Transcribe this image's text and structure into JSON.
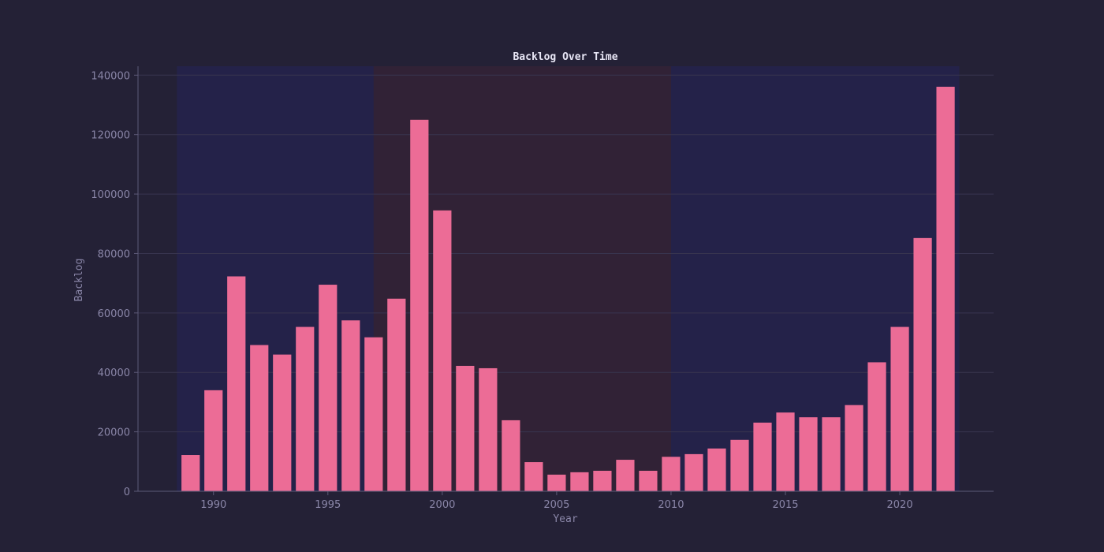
{
  "chart_data": {
    "type": "bar",
    "title": "Backlog Over Time",
    "xlabel": "Year",
    "ylabel": "Backlog",
    "x": [
      1989,
      1990,
      1991,
      1992,
      1993,
      1994,
      1995,
      1996,
      1997,
      1998,
      1999,
      2000,
      2001,
      2002,
      2003,
      2004,
      2005,
      2006,
      2007,
      2008,
      2009,
      2010,
      2011,
      2012,
      2013,
      2014,
      2015,
      2016,
      2017,
      2018,
      2019,
      2020,
      2021,
      2022
    ],
    "values": [
      12200,
      34000,
      72300,
      49200,
      46000,
      55300,
      69500,
      57500,
      51800,
      64800,
      125000,
      94500,
      42200,
      41400,
      23900,
      9800,
      5600,
      6400,
      6900,
      10600,
      6900,
      11600,
      12500,
      14400,
      17300,
      23100,
      26500,
      24900,
      24900,
      29000,
      43400,
      55300,
      85200,
      136100
    ],
    "xticks": [
      1990,
      1995,
      2000,
      2005,
      2010,
      2015,
      2020
    ],
    "yticks": [
      0,
      20000,
      40000,
      60000,
      80000,
      100000,
      120000,
      140000
    ],
    "xlim": [
      1986.7,
      2024.1
    ],
    "ylim": [
      0,
      143000
    ],
    "grid": "horizontal",
    "shaded_ranges": [
      {
        "from": 1988.4,
        "to": 1997.0,
        "color": "#25245a"
      },
      {
        "from": 1997.0,
        "to": 2010.0,
        "color": "#3c2436"
      },
      {
        "from": 2010.0,
        "to": 2022.6,
        "color": "#25245a"
      }
    ],
    "colors": {
      "background": "#242136",
      "bar": "#ec6c96",
      "grid": "#38354f",
      "axis": "#5d5a78"
    }
  }
}
